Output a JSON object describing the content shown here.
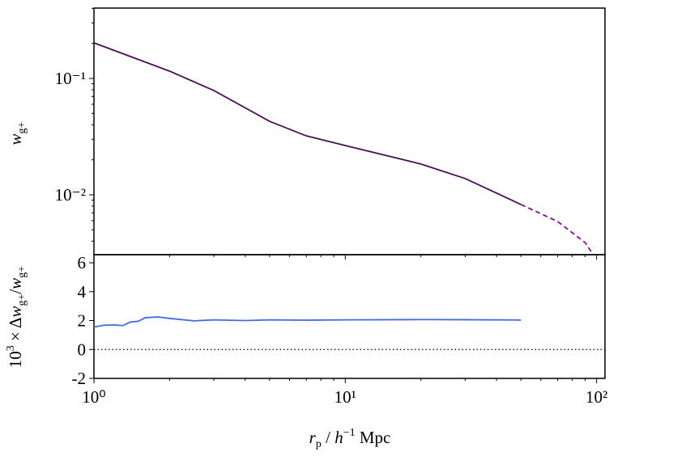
{
  "chart_data": [
    {
      "type": "line",
      "ylabel": [
        "w",
        "g+"
      ],
      "log_x": true,
      "log_y": true,
      "xlim": [
        1,
        108
      ],
      "xticks": [
        1,
        10,
        100
      ],
      "xminorticks": [
        2,
        3,
        4,
        5,
        6,
        7,
        8,
        9,
        20,
        30,
        40,
        50,
        60,
        70,
        80,
        90
      ],
      "ylim": [
        0.00306,
        0.402
      ],
      "yticks": [
        {
          "value": 0.1,
          "label": "10⁻¹"
        },
        {
          "value": 0.01,
          "label": "10⁻²"
        }
      ],
      "yminorticks": [
        0.004,
        0.005,
        0.006,
        0.007,
        0.008,
        0.009,
        0.02,
        0.03,
        0.04,
        0.05,
        0.06,
        0.07,
        0.08,
        0.09,
        0.2,
        0.3,
        0.4
      ],
      "series": [
        {
          "color": "#4a0f55",
          "dash": false,
          "x": [
            1,
            2,
            3,
            5,
            7,
            10,
            20,
            30,
            50
          ],
          "values": [
            0.202,
            0.1155,
            0.0787,
            0.0428,
            0.0321,
            0.0265,
            0.0184,
            0.0138,
            0.00826
          ]
        },
        {
          "color": "#800f95",
          "dash": true,
          "x": [
            50,
            70,
            90,
            97
          ],
          "values": [
            0.00826,
            0.0059,
            0.00389,
            0.00306
          ]
        }
      ]
    },
    {
      "type": "line",
      "ylabel": [
        "10",
        "3",
        " × Δ",
        "w",
        "g+",
        "/",
        "w",
        "g+"
      ],
      "xlabel": [
        "r",
        "p",
        " / ",
        "h",
        "−1",
        " Mpc"
      ],
      "log_x": true,
      "xlim": [
        1,
        108
      ],
      "xticks": [
        {
          "value": 1,
          "label": "10⁰"
        },
        {
          "value": 10,
          "label": "10¹"
        },
        {
          "value": 100,
          "label": "10²"
        }
      ],
      "xminorticks": [
        2,
        3,
        4,
        5,
        6,
        7,
        8,
        9,
        20,
        30,
        40,
        50,
        60,
        70,
        80,
        90
      ],
      "ylim": [
        -2,
        6.56
      ],
      "yticks": [
        -2,
        0,
        2,
        4,
        6
      ],
      "reference_line": 0,
      "series": [
        {
          "color": "#4169e1",
          "dash": false,
          "x": [
            1,
            1.1,
            1.2,
            1.3,
            1.4,
            1.5,
            1.6,
            1.8,
            2,
            2.5,
            3,
            4,
            5,
            7,
            10,
            20,
            30,
            50
          ],
          "values": [
            1.56,
            1.68,
            1.7,
            1.65,
            1.9,
            1.95,
            2.2,
            2.25,
            2.15,
            1.98,
            2.05,
            2.0,
            2.05,
            2.03,
            2.05,
            2.07,
            2.06,
            2.04
          ]
        }
      ]
    }
  ]
}
